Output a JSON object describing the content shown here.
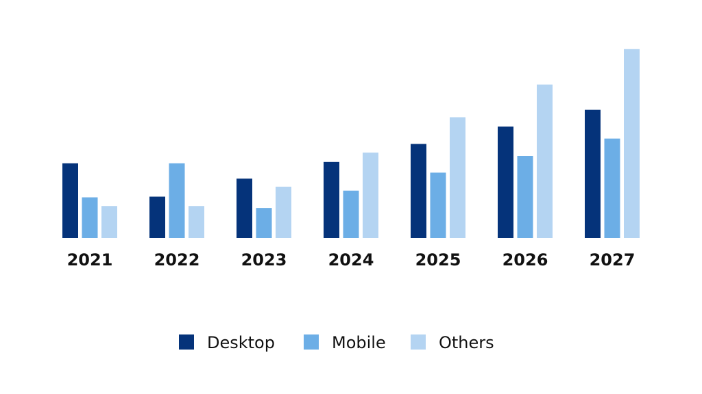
{
  "chart_data": {
    "type": "bar",
    "categories": [
      "2021",
      "2022",
      "2023",
      "2024",
      "2025",
      "2026",
      "2027"
    ],
    "series": [
      {
        "name": "Desktop",
        "color": "#05337a",
        "values": [
          112,
          62,
          89,
          114,
          141,
          167,
          192
        ]
      },
      {
        "name": "Mobile",
        "color": "#6caee6",
        "values": [
          61,
          112,
          45,
          71,
          98,
          123,
          149
        ]
      },
      {
        "name": "Others",
        "color": "#b4d4f2",
        "values": [
          48,
          48,
          77,
          128,
          181,
          230,
          283
        ]
      }
    ],
    "title": "",
    "xlabel": "",
    "ylabel": "",
    "ylim": [
      0,
      290
    ],
    "grid": false,
    "legend": "bottom-center"
  }
}
